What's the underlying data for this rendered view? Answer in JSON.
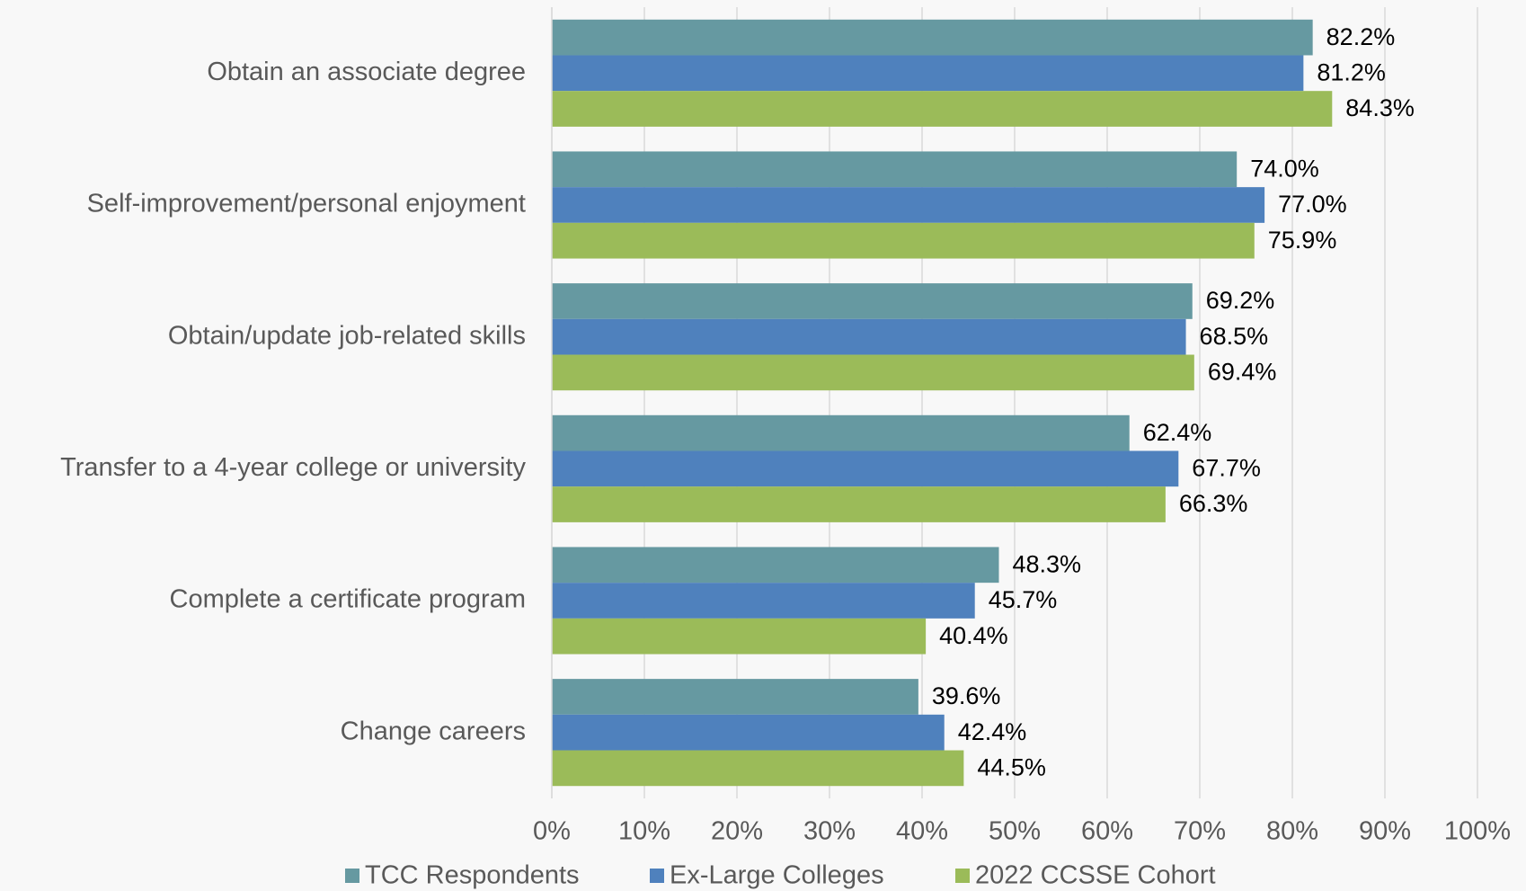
{
  "chart_data": {
    "type": "bar",
    "orientation": "horizontal",
    "categories": [
      "Obtain an associate degree",
      "Self-improvement/personal enjoyment",
      "Obtain/update job-related skills",
      "Transfer to a 4-year college or university",
      "Complete a certificate program",
      "Change careers"
    ],
    "series": [
      {
        "name": "TCC Respondents",
        "color": "#6699a1",
        "values": [
          82.2,
          74.0,
          69.2,
          62.4,
          48.3,
          39.6
        ],
        "value_labels": [
          "82.2%",
          "74.0%",
          "69.2%",
          "62.4%",
          "48.3%",
          "39.6%"
        ]
      },
      {
        "name": "Ex-Large Colleges",
        "color": "#4f81bd",
        "values": [
          81.2,
          77.0,
          68.5,
          67.7,
          45.7,
          42.4
        ],
        "value_labels": [
          "81.2%",
          "77.0%",
          "68.5%",
          "67.7%",
          "45.7%",
          "42.4%"
        ]
      },
      {
        "name": "2022 CCSSE Cohort",
        "color": "#9bbb59",
        "values": [
          84.3,
          75.9,
          69.4,
          66.3,
          40.4,
          44.5
        ],
        "value_labels": [
          "84.3%",
          "75.9%",
          "69.4%",
          "66.3%",
          "40.4%",
          "44.5%"
        ]
      }
    ],
    "xlim": [
      0,
      100
    ],
    "xticks": [
      {
        "value": 0,
        "label": "0%"
      },
      {
        "value": 10,
        "label": "10%"
      },
      {
        "value": 20,
        "label": "20%"
      },
      {
        "value": 30,
        "label": "30%"
      },
      {
        "value": 40,
        "label": "40%"
      },
      {
        "value": 50,
        "label": "50%"
      },
      {
        "value": 60,
        "label": "60%"
      },
      {
        "value": 70,
        "label": "70%"
      },
      {
        "value": 80,
        "label": "80%"
      },
      {
        "value": 90,
        "label": "90%"
      },
      {
        "value": 100,
        "label": "100%"
      }
    ],
    "grid": true,
    "legend": "bottom"
  }
}
